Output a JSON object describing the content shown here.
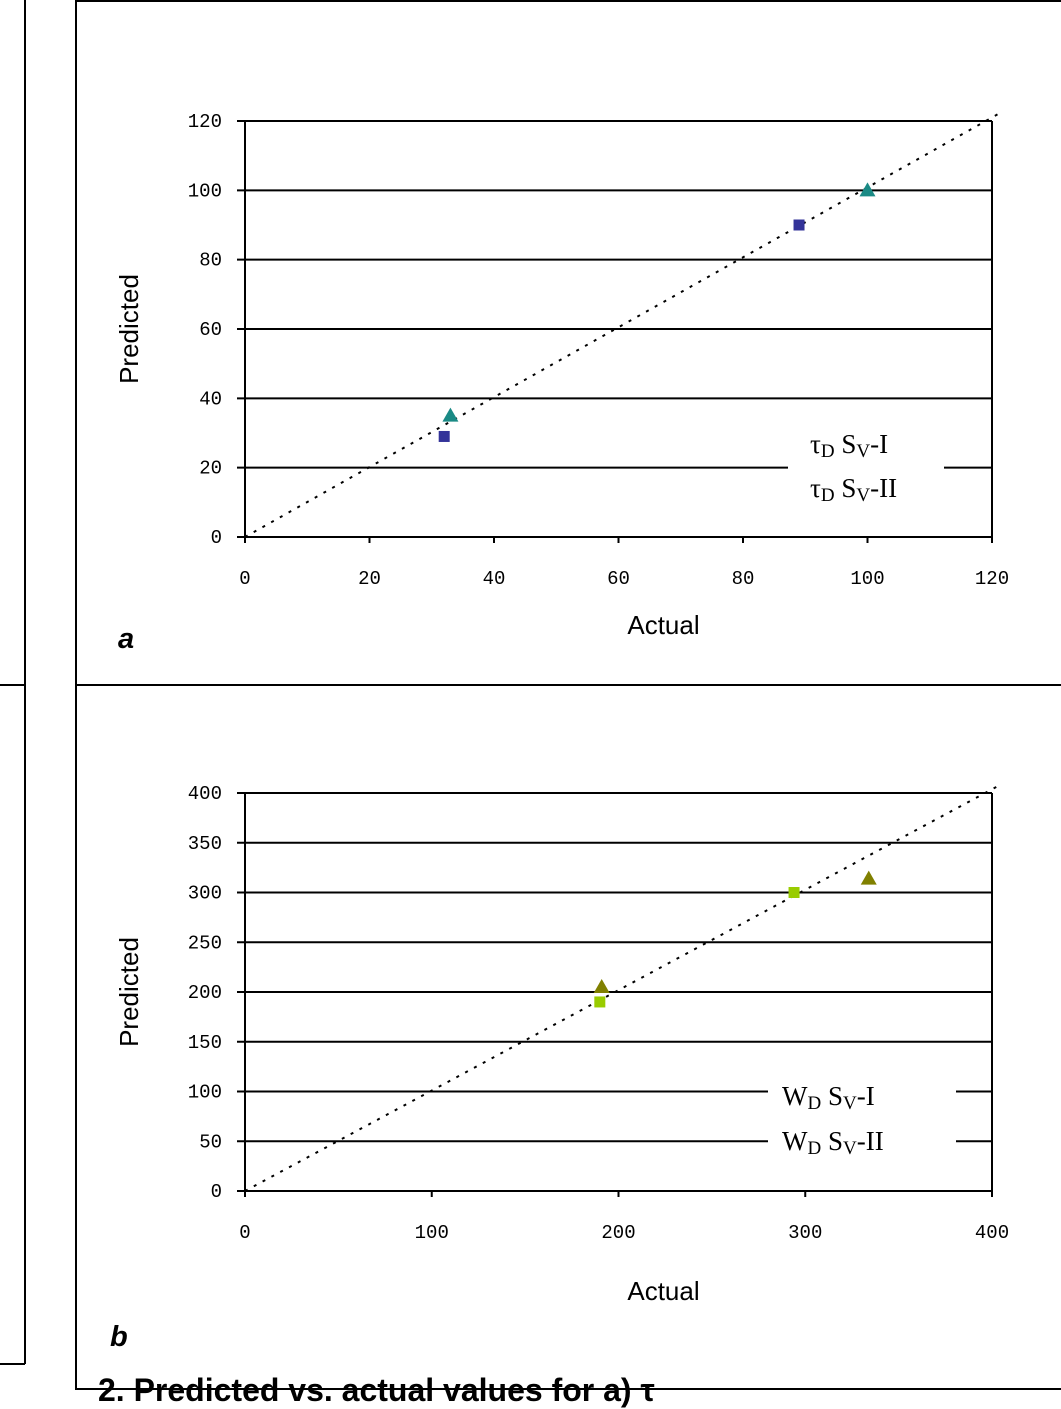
{
  "caption": "2. Predicted vs. actual values for a) τ",
  "chart_data": [
    {
      "panel_label": "a",
      "type": "scatter",
      "xlabel": "Actual",
      "ylabel": "Predicted",
      "xlim": [
        0,
        120
      ],
      "ylim": [
        0,
        120
      ],
      "xticks": [
        "0",
        "20",
        "40",
        "60",
        "80",
        "100",
        "120"
      ],
      "yticks": [
        "0",
        "20",
        "40",
        "60",
        "80",
        "100",
        "120"
      ],
      "grid": "horizontal",
      "legend_position": "bottom-right",
      "reference_line": "y = x",
      "series": [
        {
          "name": "τD SV-I",
          "legend": {
            "main": "τ",
            "sub1": "D",
            "mid": " S",
            "sub2": "V",
            "tail": "-I"
          },
          "marker": "square",
          "color": "#333399",
          "points": [
            {
              "x": 32,
              "y": 29
            },
            {
              "x": 89,
              "y": 90
            }
          ]
        },
        {
          "name": "τD SV-II",
          "legend": {
            "main": "τ",
            "sub1": "D",
            "mid": " S",
            "sub2": "V",
            "tail": "-II"
          },
          "marker": "triangle",
          "color": "#1a8a85",
          "points": [
            {
              "x": 33,
              "y": 35
            },
            {
              "x": 100,
              "y": 100
            }
          ]
        }
      ]
    },
    {
      "panel_label": "b",
      "type": "scatter",
      "xlabel": "Actual",
      "ylabel": "Predicted",
      "xlim": [
        0,
        400
      ],
      "ylim": [
        0,
        400
      ],
      "xticks": [
        "0",
        "100",
        "200",
        "300",
        "400"
      ],
      "yticks": [
        "0",
        "50",
        "100",
        "150",
        "200",
        "250",
        "300",
        "350",
        "400"
      ],
      "grid": "horizontal",
      "legend_position": "bottom-right",
      "reference_line": "y = x",
      "series": [
        {
          "name": "WD SV-I",
          "legend": {
            "main": "W",
            "sub1": "D",
            "mid": " S",
            "sub2": "V",
            "tail": "-I"
          },
          "marker": "square",
          "color": "#99cc00",
          "points": [
            {
              "x": 190,
              "y": 190
            },
            {
              "x": 294,
              "y": 300
            }
          ]
        },
        {
          "name": "WD SV-II",
          "legend": {
            "main": "W",
            "sub1": "D",
            "mid": " S",
            "sub2": "V",
            "tail": "-II"
          },
          "marker": "triangle",
          "color": "#808000",
          "points": [
            {
              "x": 191,
              "y": 205
            },
            {
              "x": 334,
              "y": 314
            }
          ]
        }
      ]
    }
  ]
}
